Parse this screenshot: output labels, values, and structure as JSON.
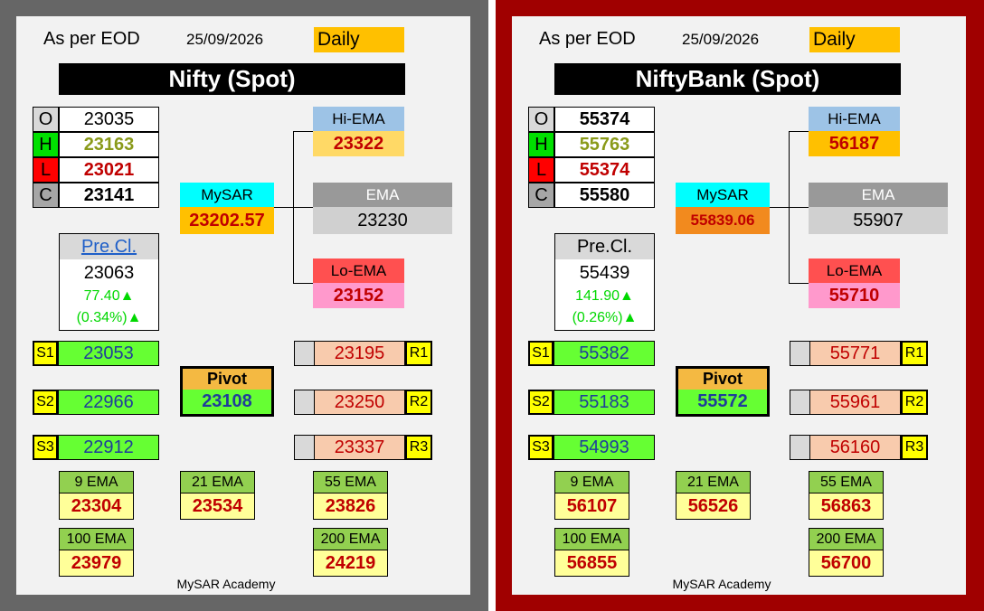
{
  "panels": [
    {
      "eod_label": "As per EOD",
      "date": "25/09/2026",
      "timeframe": "Daily",
      "title": "Nifty (Spot)",
      "ohlc": [
        {
          "letter": "O",
          "value": "23035",
          "letter_bg": "#d9d9d9",
          "value_color": "#000000",
          "bold": false
        },
        {
          "letter": "H",
          "value": "23163",
          "letter_bg": "#00e000",
          "value_color": "#8a9a1a",
          "bold": true
        },
        {
          "letter": "L",
          "value": "23021",
          "letter_bg": "#ff0000",
          "value_color": "#c00000",
          "bold": true
        },
        {
          "letter": "C",
          "value": "23141",
          "letter_bg": "#a6a6a6",
          "value_color": "#000000",
          "bold": true
        }
      ],
      "mysar": {
        "label": "MySAR",
        "value": "23202.57",
        "value_bg": "#ffc000"
      },
      "hi_ema": {
        "label": "Hi-EMA",
        "value": "23322"
      },
      "ema": {
        "label": "EMA",
        "value": "23230"
      },
      "lo_ema": {
        "label": "Lo-EMA",
        "value": "23152"
      },
      "pre_close": {
        "label": "Pre.Cl.",
        "value": "23063",
        "change": "77.40▲",
        "percent": "(0.34%)▲",
        "label_link": true
      },
      "supports": [
        {
          "label": "S1",
          "value": "23053"
        },
        {
          "label": "S2",
          "value": "22966"
        },
        {
          "label": "S3",
          "value": "22912"
        }
      ],
      "resistances": [
        {
          "label": "R1",
          "value": "23195"
        },
        {
          "label": "R2",
          "value": "23250"
        },
        {
          "label": "R3",
          "value": "23337"
        }
      ],
      "pivot": {
        "label": "Pivot",
        "value": "23108"
      },
      "emas": [
        {
          "label": "9 EMA",
          "value": "23304"
        },
        {
          "label": "21 EMA",
          "value": "23534"
        },
        {
          "label": "55 EMA",
          "value": "23826"
        },
        {
          "label": "100 EMA",
          "value": "23979"
        },
        {
          "label": "200 EMA",
          "value": "24219"
        }
      ],
      "footer": "MySAR Academy"
    },
    {
      "eod_label": "As per EOD",
      "date": "25/09/2026",
      "timeframe": "Daily",
      "title": "NiftyBank (Spot)",
      "ohlc": [
        {
          "letter": "O",
          "value": "55374",
          "letter_bg": "#d9d9d9",
          "value_color": "#000000",
          "bold": true
        },
        {
          "letter": "H",
          "value": "55763",
          "letter_bg": "#00e000",
          "value_color": "#8a9a1a",
          "bold": true
        },
        {
          "letter": "L",
          "value": "55374",
          "letter_bg": "#ff0000",
          "value_color": "#c00000",
          "bold": true
        },
        {
          "letter": "C",
          "value": "55580",
          "letter_bg": "#a6a6a6",
          "value_color": "#000000",
          "bold": true
        }
      ],
      "mysar": {
        "label": "MySAR",
        "value": "55839.06",
        "value_bg": "#f28a1e"
      },
      "hi_ema": {
        "label": "Hi-EMA",
        "value": "56187"
      },
      "ema": {
        "label": "EMA",
        "value": "55907"
      },
      "lo_ema": {
        "label": "Lo-EMA",
        "value": "55710"
      },
      "pre_close": {
        "label": "Pre.Cl.",
        "value": "55439",
        "change": "141.90▲",
        "percent": "(0.26%)▲",
        "label_link": false
      },
      "supports": [
        {
          "label": "S1",
          "value": "55382"
        },
        {
          "label": "S2",
          "value": "55183"
        },
        {
          "label": "S3",
          "value": "54993"
        }
      ],
      "resistances": [
        {
          "label": "R1",
          "value": "55771"
        },
        {
          "label": "R2",
          "value": "55961"
        },
        {
          "label": "R3",
          "value": "56160"
        }
      ],
      "pivot": {
        "label": "Pivot",
        "value": "55572"
      },
      "emas": [
        {
          "label": "9 EMA",
          "value": "56107"
        },
        {
          "label": "21 EMA",
          "value": "56526"
        },
        {
          "label": "55 EMA",
          "value": "56863"
        },
        {
          "label": "100 EMA",
          "value": "56855"
        },
        {
          "label": "200 EMA",
          "value": "56700"
        }
      ],
      "footer": "MySAR Academy"
    }
  ],
  "colors": {
    "left_frame": "#666666",
    "right_frame": "#a00000",
    "panel_bg": "#f2f2f2"
  }
}
